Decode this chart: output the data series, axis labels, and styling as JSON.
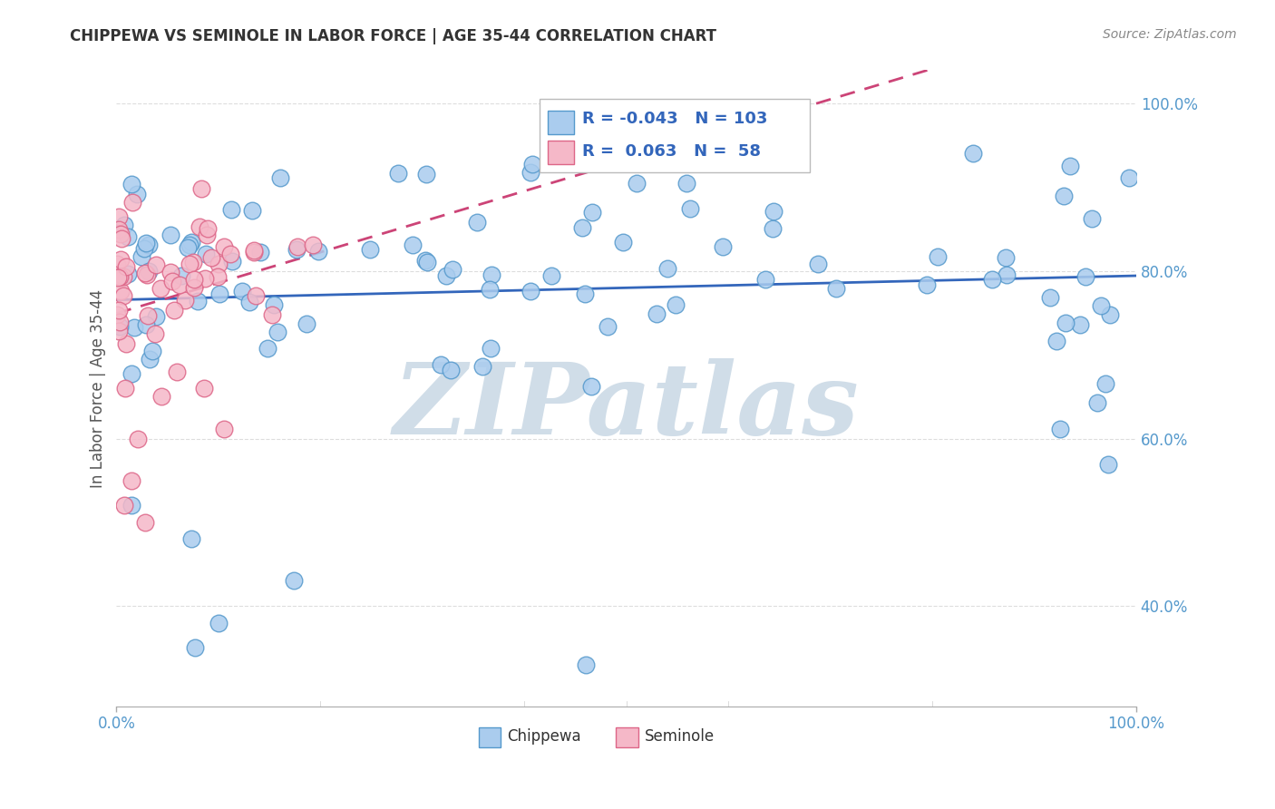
{
  "title": "CHIPPEWA VS SEMINOLE IN LABOR FORCE | AGE 35-44 CORRELATION CHART",
  "source": "Source: ZipAtlas.com",
  "ylabel": "In Labor Force | Age 35-44",
  "legend_chippewa": {
    "R": -0.043,
    "N": 103
  },
  "legend_seminole": {
    "R": 0.063,
    "N": 58
  },
  "chippewa_color": "#aaccee",
  "chippewa_edge": "#5599cc",
  "seminole_color": "#f5b8c8",
  "seminole_edge": "#dd6688",
  "trend_chippewa_color": "#3366bb",
  "trend_seminole_color": "#cc4477",
  "watermark": "ZIPatlas",
  "watermark_color": "#d0dde8",
  "xmin": 0.0,
  "xmax": 1.0,
  "ymin": 0.28,
  "ymax": 1.04,
  "ytick_positions": [
    0.4,
    0.6,
    0.8,
    1.0
  ],
  "ytick_labels": [
    "40.0%",
    "60.0%",
    "80.0%",
    "100.0%"
  ],
  "xtick_positions": [
    0.0,
    1.0
  ],
  "xtick_labels": [
    "0.0%",
    "100.0%"
  ],
  "grid_color": "#dddddd",
  "background_color": "#ffffff",
  "tick_color": "#5599cc",
  "title_color": "#333333",
  "source_color": "#888888"
}
